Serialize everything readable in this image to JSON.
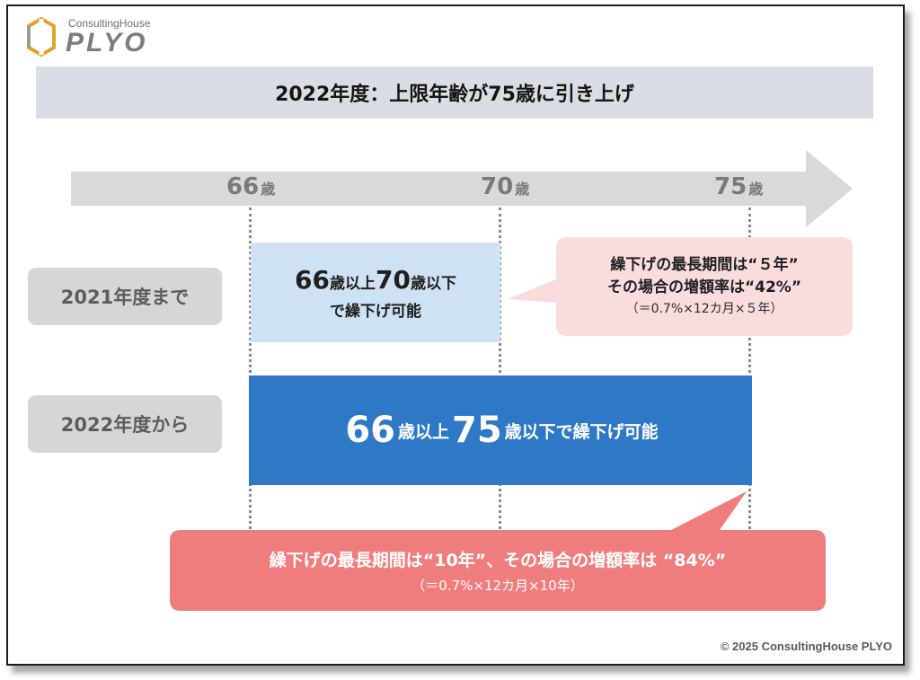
{
  "brand": {
    "small": "ConsultingHouse",
    "big": "PLYO"
  },
  "title": "2022年度：上限年齢が75歳に引き上げ",
  "timeline": {
    "ages": [
      {
        "num": "66",
        "unit": "歳"
      },
      {
        "num": "70",
        "unit": "歳"
      },
      {
        "num": "75",
        "unit": "歳"
      }
    ]
  },
  "rows": {
    "r2021": "2021年度まで",
    "r2022": "2022年度から"
  },
  "box2021": {
    "a": "66",
    "a_unit": "歳以上",
    "b": "70",
    "b_unit": "歳以下",
    "line2": "で繰下げ可能"
  },
  "box2022": {
    "a": "66",
    "a_unit": "歳以上",
    "b": "75",
    "b_unit": "歳以下で繰下げ可能"
  },
  "callout1": {
    "line1": "繰下げの最長期間は“５年”",
    "line2": "その場合の増額率は“42%”",
    "line3": "（＝0.7%×12カ月×５年）"
  },
  "callout2": {
    "line1": "繰下げの最長期間は“10年”、その場合の増額率は “84%”",
    "line2": "（＝0.7%×12カ月×10年）"
  },
  "copyright": "© 2025 ConsultingHouse PLYO",
  "colors": {
    "title_band": "#d9dde6",
    "arrow": "#d9d9d9",
    "box2021": "#cfe2f3",
    "box2022": "#2e78c6",
    "callout1": "#fbdcdc",
    "callout2": "#f07d7d",
    "row_label": "#d6d6d6"
  }
}
